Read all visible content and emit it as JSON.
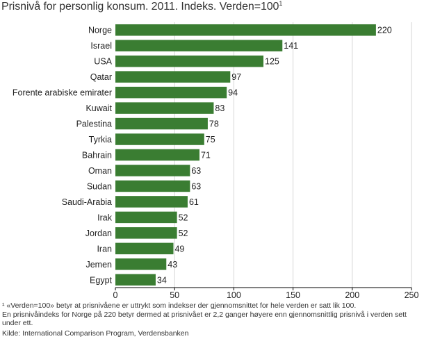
{
  "title": "Prisnivå for personlig konsum. 2011. Indeks. Verden=100",
  "title_footnote_mark": "1",
  "chart_data": {
    "type": "bar",
    "orientation": "horizontal",
    "categories": [
      "Norge",
      "Israel",
      "USA",
      "Qatar",
      "Forente arabiske emirater",
      "Kuwait",
      "Palestina",
      "Tyrkia",
      "Bahrain",
      "Oman",
      "Sudan",
      "Saudi-Arabia",
      "Irak",
      "Jordan",
      "Iran",
      "Jemen",
      "Egypt"
    ],
    "values": [
      220,
      141,
      125,
      97,
      94,
      83,
      78,
      75,
      71,
      63,
      63,
      61,
      52,
      52,
      49,
      43,
      34
    ],
    "xlim": [
      0,
      250
    ],
    "xticks": [
      0,
      50,
      100,
      150,
      200,
      250
    ],
    "grid": true,
    "bar_color": "#3a7d32"
  },
  "footnote_1": "¹ «Verden=100» betyr at prisnivåene er uttrykt som indekser der gjennomsnittet for hele verden er satt lik 100.",
  "footnote_2": "En prisnivåindeks for Norge på 220 betyr dermed at prisnivået er 2,2 ganger høyere enn gjennomsnittlig prisnivå i verden sett under ett.",
  "source": "Kilde: International Comparison Program, Verdensbanken"
}
